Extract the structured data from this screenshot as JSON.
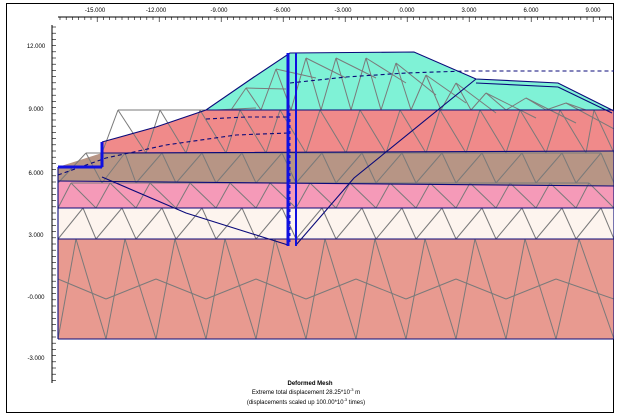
{
  "figure": {
    "x_ticks": [
      "-15.000",
      "-12.000",
      "-9.000",
      "-6.000",
      "-3.000",
      "0.000",
      "3.000",
      "6.000",
      "9.000"
    ],
    "y_ticks": [
      "12.000",
      "9.000",
      "6.000",
      "3.000",
      "-0.000",
      "-3.000"
    ],
    "caption": {
      "title": "Deformed Mesh",
      "line1": "Extreme total displacement 28.25*10",
      "line1_exp": "-3",
      "line1_unit": " m",
      "line2": "(displacements scaled up 100.00*10",
      "line2_exp": "-3",
      "line2_unit": " times)"
    },
    "layers": [
      {
        "name": "embankment-fill",
        "color": "#7FF2D6"
      },
      {
        "name": "red-fill",
        "color": "#F08A8A"
      },
      {
        "name": "brown-clay",
        "color": "#B79585"
      },
      {
        "name": "pink-layer",
        "color": "#F59AB8"
      },
      {
        "name": "cream-sand",
        "color": "#FDF4EE"
      },
      {
        "name": "deep-subsoil",
        "color": "#E89A90"
      }
    ],
    "colors": {
      "mesh": "#7A7A7A",
      "boundary": "#0A0A7A",
      "wall": "#1010E0",
      "frame": "#000000"
    }
  }
}
